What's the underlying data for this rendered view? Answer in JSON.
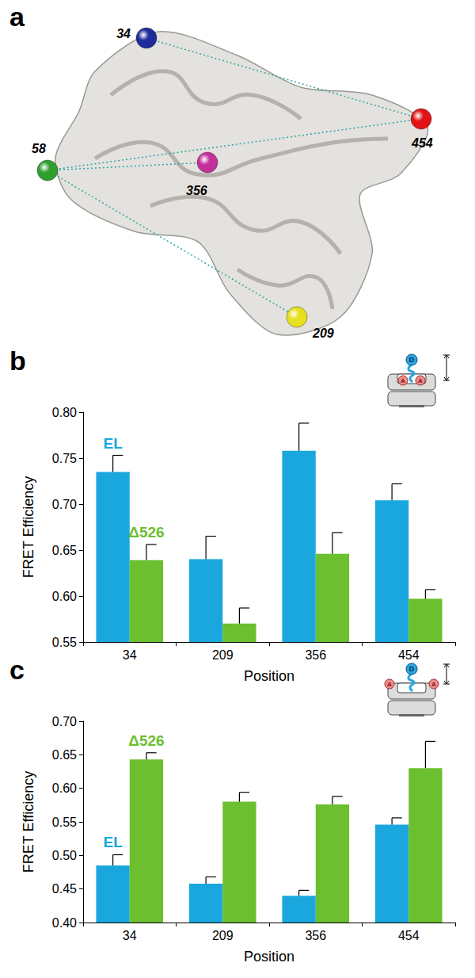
{
  "panel_a": {
    "label": "a",
    "sites": [
      {
        "label": "34",
        "color": "#1f2b9a"
      },
      {
        "label": "58",
        "color": "#2e9e2e"
      },
      {
        "label": "356",
        "color": "#c2309c"
      },
      {
        "label": "454",
        "color": "#e01414"
      },
      {
        "label": "209",
        "color": "#e6e01e"
      }
    ],
    "distances": [
      [
        "34",
        "454"
      ],
      [
        "58",
        "454"
      ],
      [
        "58",
        "356"
      ],
      [
        "58",
        "209"
      ]
    ]
  },
  "chart_data": [
    {
      "type": "bar",
      "title": "b",
      "x_label": "Position",
      "y_label": "FRET Efficiency",
      "categories": [
        "34",
        "209",
        "356",
        "454"
      ],
      "series": [
        {
          "name": "EL",
          "color": "#1aa7de",
          "values": [
            0.735,
            0.64,
            0.758,
            0.704
          ],
          "errors": [
            0.018,
            0.025,
            0.03,
            0.018
          ]
        },
        {
          "name": "Δ526",
          "color": "#6cbf2e",
          "values": [
            0.639,
            0.57,
            0.646,
            0.597
          ],
          "errors": [
            0.017,
            0.017,
            0.023,
            0.01
          ]
        }
      ],
      "ylim": [
        0.55,
        0.8
      ],
      "yticks": [
        0.55,
        {
          "value": 0.6,
          "label": "0.60"
        },
        0.65,
        {
          "value": 0.7,
          "label": "0.70"
        },
        0.75,
        {
          "value": 0.8,
          "label": "0.80"
        }
      ],
      "grid": false,
      "annotations": {
        "donor": "D",
        "acceptor": "A"
      }
    },
    {
      "type": "bar",
      "title": "c",
      "x_label": "Position",
      "y_label": "FRET Efficiency",
      "categories": [
        "34",
        "209",
        "356",
        "454"
      ],
      "series": [
        {
          "name": "EL",
          "color": "#1aa7de",
          "values": [
            0.485,
            0.458,
            0.44,
            0.546
          ],
          "errors": [
            0.016,
            0.01,
            0.008,
            0.01
          ]
        },
        {
          "name": "Δ526",
          "color": "#6cbf2e",
          "values": [
            0.643,
            0.58,
            0.576,
            0.63
          ],
          "errors": [
            0.01,
            0.014,
            0.012,
            0.04
          ]
        }
      ],
      "ylim": [
        0.4,
        0.7
      ],
      "yticks": [
        {
          "value": 0.4,
          "label": "0.40"
        },
        0.45,
        {
          "value": 0.5,
          "label": "0.50"
        },
        0.55,
        {
          "value": 0.6,
          "label": "0.60"
        },
        0.65,
        {
          "value": 0.7,
          "label": "0.70"
        }
      ],
      "grid": false,
      "annotations": {
        "donor": "D",
        "acceptor": "A"
      }
    }
  ]
}
